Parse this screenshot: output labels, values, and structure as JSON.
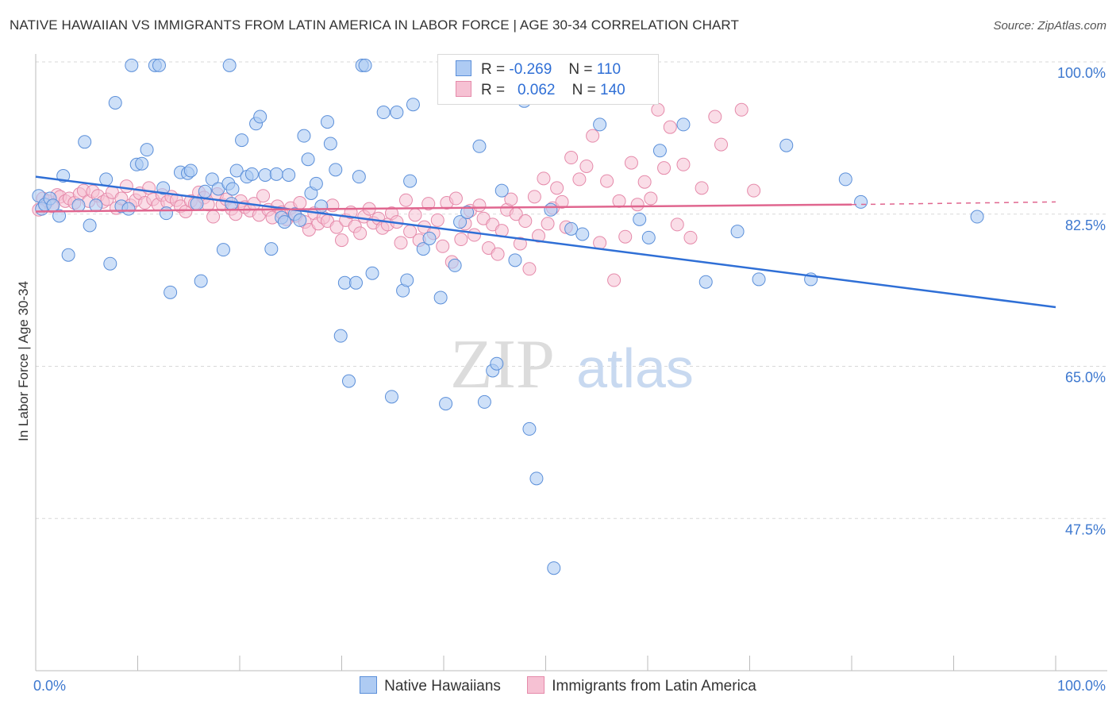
{
  "title": "NATIVE HAWAIIAN VS IMMIGRANTS FROM LATIN AMERICA IN LABOR FORCE | AGE 30-34 CORRELATION CHART",
  "source": "Source: ZipAtlas.com",
  "watermark": {
    "zip": "ZIP",
    "atlas": "atlas"
  },
  "legend": {
    "rows": [
      {
        "r_label": "R =",
        "r_value": "-0.269",
        "n_label": "N =",
        "n_value": "110"
      },
      {
        "r_label": "R =",
        "r_value": "0.062",
        "n_label": "N =",
        "n_value": "140"
      }
    ]
  },
  "colors": {
    "blue_fill": "#aecbf3",
    "blue_stroke": "#5b8fd9",
    "blue_line": "#2f6fd6",
    "pink_fill": "#f6c1d3",
    "pink_stroke": "#e58aaa",
    "pink_line": "#e0668f",
    "tick_label": "#3d78cf",
    "grid": "#d8d8d8"
  },
  "chart_data": {
    "type": "scatter",
    "ylabel": "In Labor Force | Age 30-34",
    "xlim": [
      0,
      100
    ],
    "ylim": [
      30,
      100
    ],
    "x_tick_labels": [
      "0.0%",
      "100.0%"
    ],
    "y_ticks": [
      {
        "value": 100.0,
        "label": "100.0%"
      },
      {
        "value": 82.5,
        "label": "82.5%"
      },
      {
        "value": 65.0,
        "label": "65.0%"
      },
      {
        "value": 47.5,
        "label": "47.5%"
      }
    ],
    "series": [
      {
        "name": "Native Hawaiians",
        "trend": {
          "x": [
            0,
            100
          ],
          "y": [
            86.8,
            71.8
          ]
        },
        "points": [
          [
            0.3,
            84.6
          ],
          [
            0.6,
            83.1
          ],
          [
            0.9,
            83.6
          ],
          [
            1.4,
            84.3
          ],
          [
            1.7,
            83.5
          ],
          [
            2.3,
            82.3
          ],
          [
            2.7,
            86.9
          ],
          [
            3.2,
            77.8
          ],
          [
            4.2,
            83.5
          ],
          [
            4.8,
            90.8
          ],
          [
            5.3,
            81.2
          ],
          [
            5.9,
            83.5
          ],
          [
            6.9,
            86.5
          ],
          [
            7.3,
            76.8
          ],
          [
            7.8,
            95.3
          ],
          [
            8.4,
            83.4
          ],
          [
            9.1,
            83.1
          ],
          [
            9.4,
            99.6
          ],
          [
            9.9,
            88.2
          ],
          [
            10.4,
            88.3
          ],
          [
            10.9,
            89.9
          ],
          [
            11.7,
            99.6
          ],
          [
            12.1,
            99.6
          ],
          [
            12.5,
            85.5
          ],
          [
            12.8,
            82.6
          ],
          [
            13.2,
            73.5
          ],
          [
            14.2,
            87.3
          ],
          [
            14.9,
            87.2
          ],
          [
            15.2,
            87.5
          ],
          [
            15.8,
            83.7
          ],
          [
            16.2,
            74.8
          ],
          [
            16.6,
            85.1
          ],
          [
            17.3,
            86.5
          ],
          [
            17.9,
            85.4
          ],
          [
            18.4,
            78.4
          ],
          [
            18.9,
            86.0
          ],
          [
            19.0,
            99.6
          ],
          [
            19.2,
            83.7
          ],
          [
            19.3,
            85.4
          ],
          [
            19.7,
            87.5
          ],
          [
            20.2,
            91.0
          ],
          [
            20.7,
            86.8
          ],
          [
            21.2,
            87.1
          ],
          [
            21.6,
            92.9
          ],
          [
            22.0,
            93.7
          ],
          [
            22.5,
            87.0
          ],
          [
            23.1,
            78.5
          ],
          [
            23.6,
            87.1
          ],
          [
            24.1,
            82.1
          ],
          [
            24.4,
            81.6
          ],
          [
            24.8,
            87.0
          ],
          [
            25.4,
            82.5
          ],
          [
            25.9,
            81.8
          ],
          [
            26.3,
            91.5
          ],
          [
            26.7,
            88.8
          ],
          [
            27.0,
            84.9
          ],
          [
            27.5,
            86.0
          ],
          [
            28.0,
            83.4
          ],
          [
            28.6,
            93.1
          ],
          [
            28.9,
            90.6
          ],
          [
            29.4,
            87.6
          ],
          [
            29.9,
            68.5
          ],
          [
            30.3,
            74.6
          ],
          [
            30.7,
            63.3
          ],
          [
            31.4,
            74.6
          ],
          [
            31.7,
            86.8
          ],
          [
            32.0,
            99.6
          ],
          [
            32.3,
            99.6
          ],
          [
            33.0,
            75.7
          ],
          [
            34.1,
            94.2
          ],
          [
            34.9,
            61.5
          ],
          [
            35.4,
            94.2
          ],
          [
            36.0,
            73.7
          ],
          [
            36.4,
            74.9
          ],
          [
            36.7,
            86.3
          ],
          [
            37.0,
            95.1
          ],
          [
            38.0,
            78.5
          ],
          [
            38.6,
            79.7
          ],
          [
            39.7,
            72.9
          ],
          [
            40.2,
            60.7
          ],
          [
            41.1,
            76.6
          ],
          [
            41.6,
            81.6
          ],
          [
            42.3,
            82.7
          ],
          [
            43.5,
            90.3
          ],
          [
            44.0,
            60.9
          ],
          [
            44.8,
            64.5
          ],
          [
            45.2,
            65.3
          ],
          [
            45.7,
            85.2
          ],
          [
            47.0,
            77.2
          ],
          [
            47.9,
            95.5
          ],
          [
            48.4,
            57.8
          ],
          [
            49.1,
            52.1
          ],
          [
            50.5,
            83.0
          ],
          [
            50.8,
            41.8
          ],
          [
            52.5,
            80.8
          ],
          [
            53.6,
            80.2
          ],
          [
            55.0,
            99.7
          ],
          [
            55.3,
            92.8
          ],
          [
            59.2,
            81.9
          ],
          [
            60.1,
            79.8
          ],
          [
            61.2,
            89.8
          ],
          [
            63.5,
            92.8
          ],
          [
            65.7,
            74.7
          ],
          [
            68.8,
            80.5
          ],
          [
            70.9,
            75.0
          ],
          [
            73.6,
            90.4
          ],
          [
            76.0,
            75.0
          ],
          [
            79.4,
            86.5
          ],
          [
            80.9,
            83.9
          ],
          [
            92.3,
            82.2
          ]
        ]
      },
      {
        "name": "Immigrants from Latin America",
        "trend": {
          "x": [
            0,
            80
          ],
          "y": [
            82.8,
            83.6
          ]
        },
        "trend_dashed": {
          "x": [
            80,
            100
          ],
          "y": [
            83.6,
            83.9
          ]
        },
        "points": [
          [
            0.3,
            83.0
          ],
          [
            0.7,
            84.3
          ],
          [
            1.2,
            84.0
          ],
          [
            1.6,
            83.4
          ],
          [
            2.1,
            84.7
          ],
          [
            2.4,
            84.5
          ],
          [
            2.9,
            84.0
          ],
          [
            3.3,
            84.3
          ],
          [
            3.8,
            83.8
          ],
          [
            4.3,
            84.8
          ],
          [
            4.7,
            85.2
          ],
          [
            5.2,
            84.0
          ],
          [
            5.6,
            85.1
          ],
          [
            6.1,
            84.6
          ],
          [
            6.6,
            83.9
          ],
          [
            7.0,
            84.2
          ],
          [
            7.5,
            85.0
          ],
          [
            7.9,
            83.2
          ],
          [
            8.4,
            84.3
          ],
          [
            8.9,
            85.7
          ],
          [
            9.3,
            83.5
          ],
          [
            9.8,
            84.1
          ],
          [
            10.2,
            84.9
          ],
          [
            10.7,
            83.8
          ],
          [
            11.1,
            85.5
          ],
          [
            11.5,
            84.2
          ],
          [
            12.0,
            83.6
          ],
          [
            12.4,
            84.7
          ],
          [
            12.9,
            83.9
          ],
          [
            13.3,
            84.5
          ],
          [
            13.8,
            84.1
          ],
          [
            14.2,
            83.4
          ],
          [
            14.7,
            82.8
          ],
          [
            15.2,
            84.0
          ],
          [
            15.6,
            83.7
          ],
          [
            16.0,
            85.0
          ],
          [
            16.5,
            84.4
          ],
          [
            16.9,
            83.6
          ],
          [
            17.4,
            82.2
          ],
          [
            17.8,
            84.8
          ],
          [
            18.3,
            83.6
          ],
          [
            18.7,
            84.2
          ],
          [
            19.2,
            83.1
          ],
          [
            19.6,
            82.5
          ],
          [
            20.1,
            84.0
          ],
          [
            20.5,
            83.3
          ],
          [
            21.0,
            82.9
          ],
          [
            21.4,
            83.7
          ],
          [
            21.9,
            82.4
          ],
          [
            22.3,
            84.6
          ],
          [
            22.8,
            83.0
          ],
          [
            23.2,
            82.1
          ],
          [
            23.7,
            83.4
          ],
          [
            24.1,
            82.7
          ],
          [
            24.6,
            81.9
          ],
          [
            25.0,
            83.2
          ],
          [
            25.5,
            82.3
          ],
          [
            25.9,
            83.8
          ],
          [
            26.4,
            81.6
          ],
          [
            26.8,
            80.7
          ],
          [
            27.3,
            82.6
          ],
          [
            27.7,
            81.4
          ],
          [
            28.2,
            82.1
          ],
          [
            28.6,
            81.7
          ],
          [
            29.1,
            83.5
          ],
          [
            29.5,
            81.0
          ],
          [
            30.0,
            79.5
          ],
          [
            30.4,
            81.8
          ],
          [
            30.9,
            82.7
          ],
          [
            31.3,
            81.1
          ],
          [
            31.8,
            80.3
          ],
          [
            32.2,
            82.2
          ],
          [
            32.7,
            83.1
          ],
          [
            33.1,
            81.5
          ],
          [
            33.6,
            82.0
          ],
          [
            34.0,
            80.9
          ],
          [
            34.5,
            81.3
          ],
          [
            34.9,
            82.6
          ],
          [
            35.4,
            81.6
          ],
          [
            35.8,
            79.2
          ],
          [
            36.3,
            84.1
          ],
          [
            36.7,
            80.5
          ],
          [
            37.2,
            82.4
          ],
          [
            37.6,
            79.5
          ],
          [
            38.1,
            81.0
          ],
          [
            38.5,
            83.7
          ],
          [
            39.0,
            80.3
          ],
          [
            39.4,
            81.8
          ],
          [
            39.9,
            78.8
          ],
          [
            40.3,
            83.8
          ],
          [
            40.8,
            77.0
          ],
          [
            41.2,
            84.3
          ],
          [
            41.7,
            79.6
          ],
          [
            42.1,
            81.4
          ],
          [
            42.6,
            82.9
          ],
          [
            43.0,
            80.1
          ],
          [
            43.5,
            83.5
          ],
          [
            43.9,
            82.0
          ],
          [
            44.4,
            78.6
          ],
          [
            44.8,
            81.3
          ],
          [
            45.3,
            77.9
          ],
          [
            45.7,
            80.6
          ],
          [
            46.2,
            83.0
          ],
          [
            46.6,
            84.2
          ],
          [
            47.1,
            82.5
          ],
          [
            47.5,
            79.1
          ],
          [
            48.0,
            81.7
          ],
          [
            48.4,
            76.2
          ],
          [
            48.9,
            84.5
          ],
          [
            49.3,
            80.0
          ],
          [
            49.8,
            86.6
          ],
          [
            50.2,
            81.4
          ],
          [
            50.7,
            83.2
          ],
          [
            51.1,
            85.5
          ],
          [
            51.6,
            83.9
          ],
          [
            52.0,
            81.0
          ],
          [
            52.5,
            89.0
          ],
          [
            53.3,
            86.5
          ],
          [
            54.0,
            88.0
          ],
          [
            54.6,
            91.5
          ],
          [
            55.3,
            79.2
          ],
          [
            56.0,
            86.3
          ],
          [
            56.7,
            74.9
          ],
          [
            57.2,
            84.0
          ],
          [
            57.8,
            79.9
          ],
          [
            58.4,
            88.4
          ],
          [
            59.0,
            83.6
          ],
          [
            59.7,
            86.2
          ],
          [
            60.3,
            84.3
          ],
          [
            61.0,
            94.5
          ],
          [
            61.6,
            87.8
          ],
          [
            62.2,
            92.5
          ],
          [
            62.9,
            81.3
          ],
          [
            63.5,
            88.2
          ],
          [
            64.2,
            79.8
          ],
          [
            65.3,
            85.5
          ],
          [
            66.6,
            93.7
          ],
          [
            67.2,
            90.5
          ],
          [
            69.2,
            94.5
          ],
          [
            70.4,
            85.2
          ]
        ]
      }
    ]
  }
}
